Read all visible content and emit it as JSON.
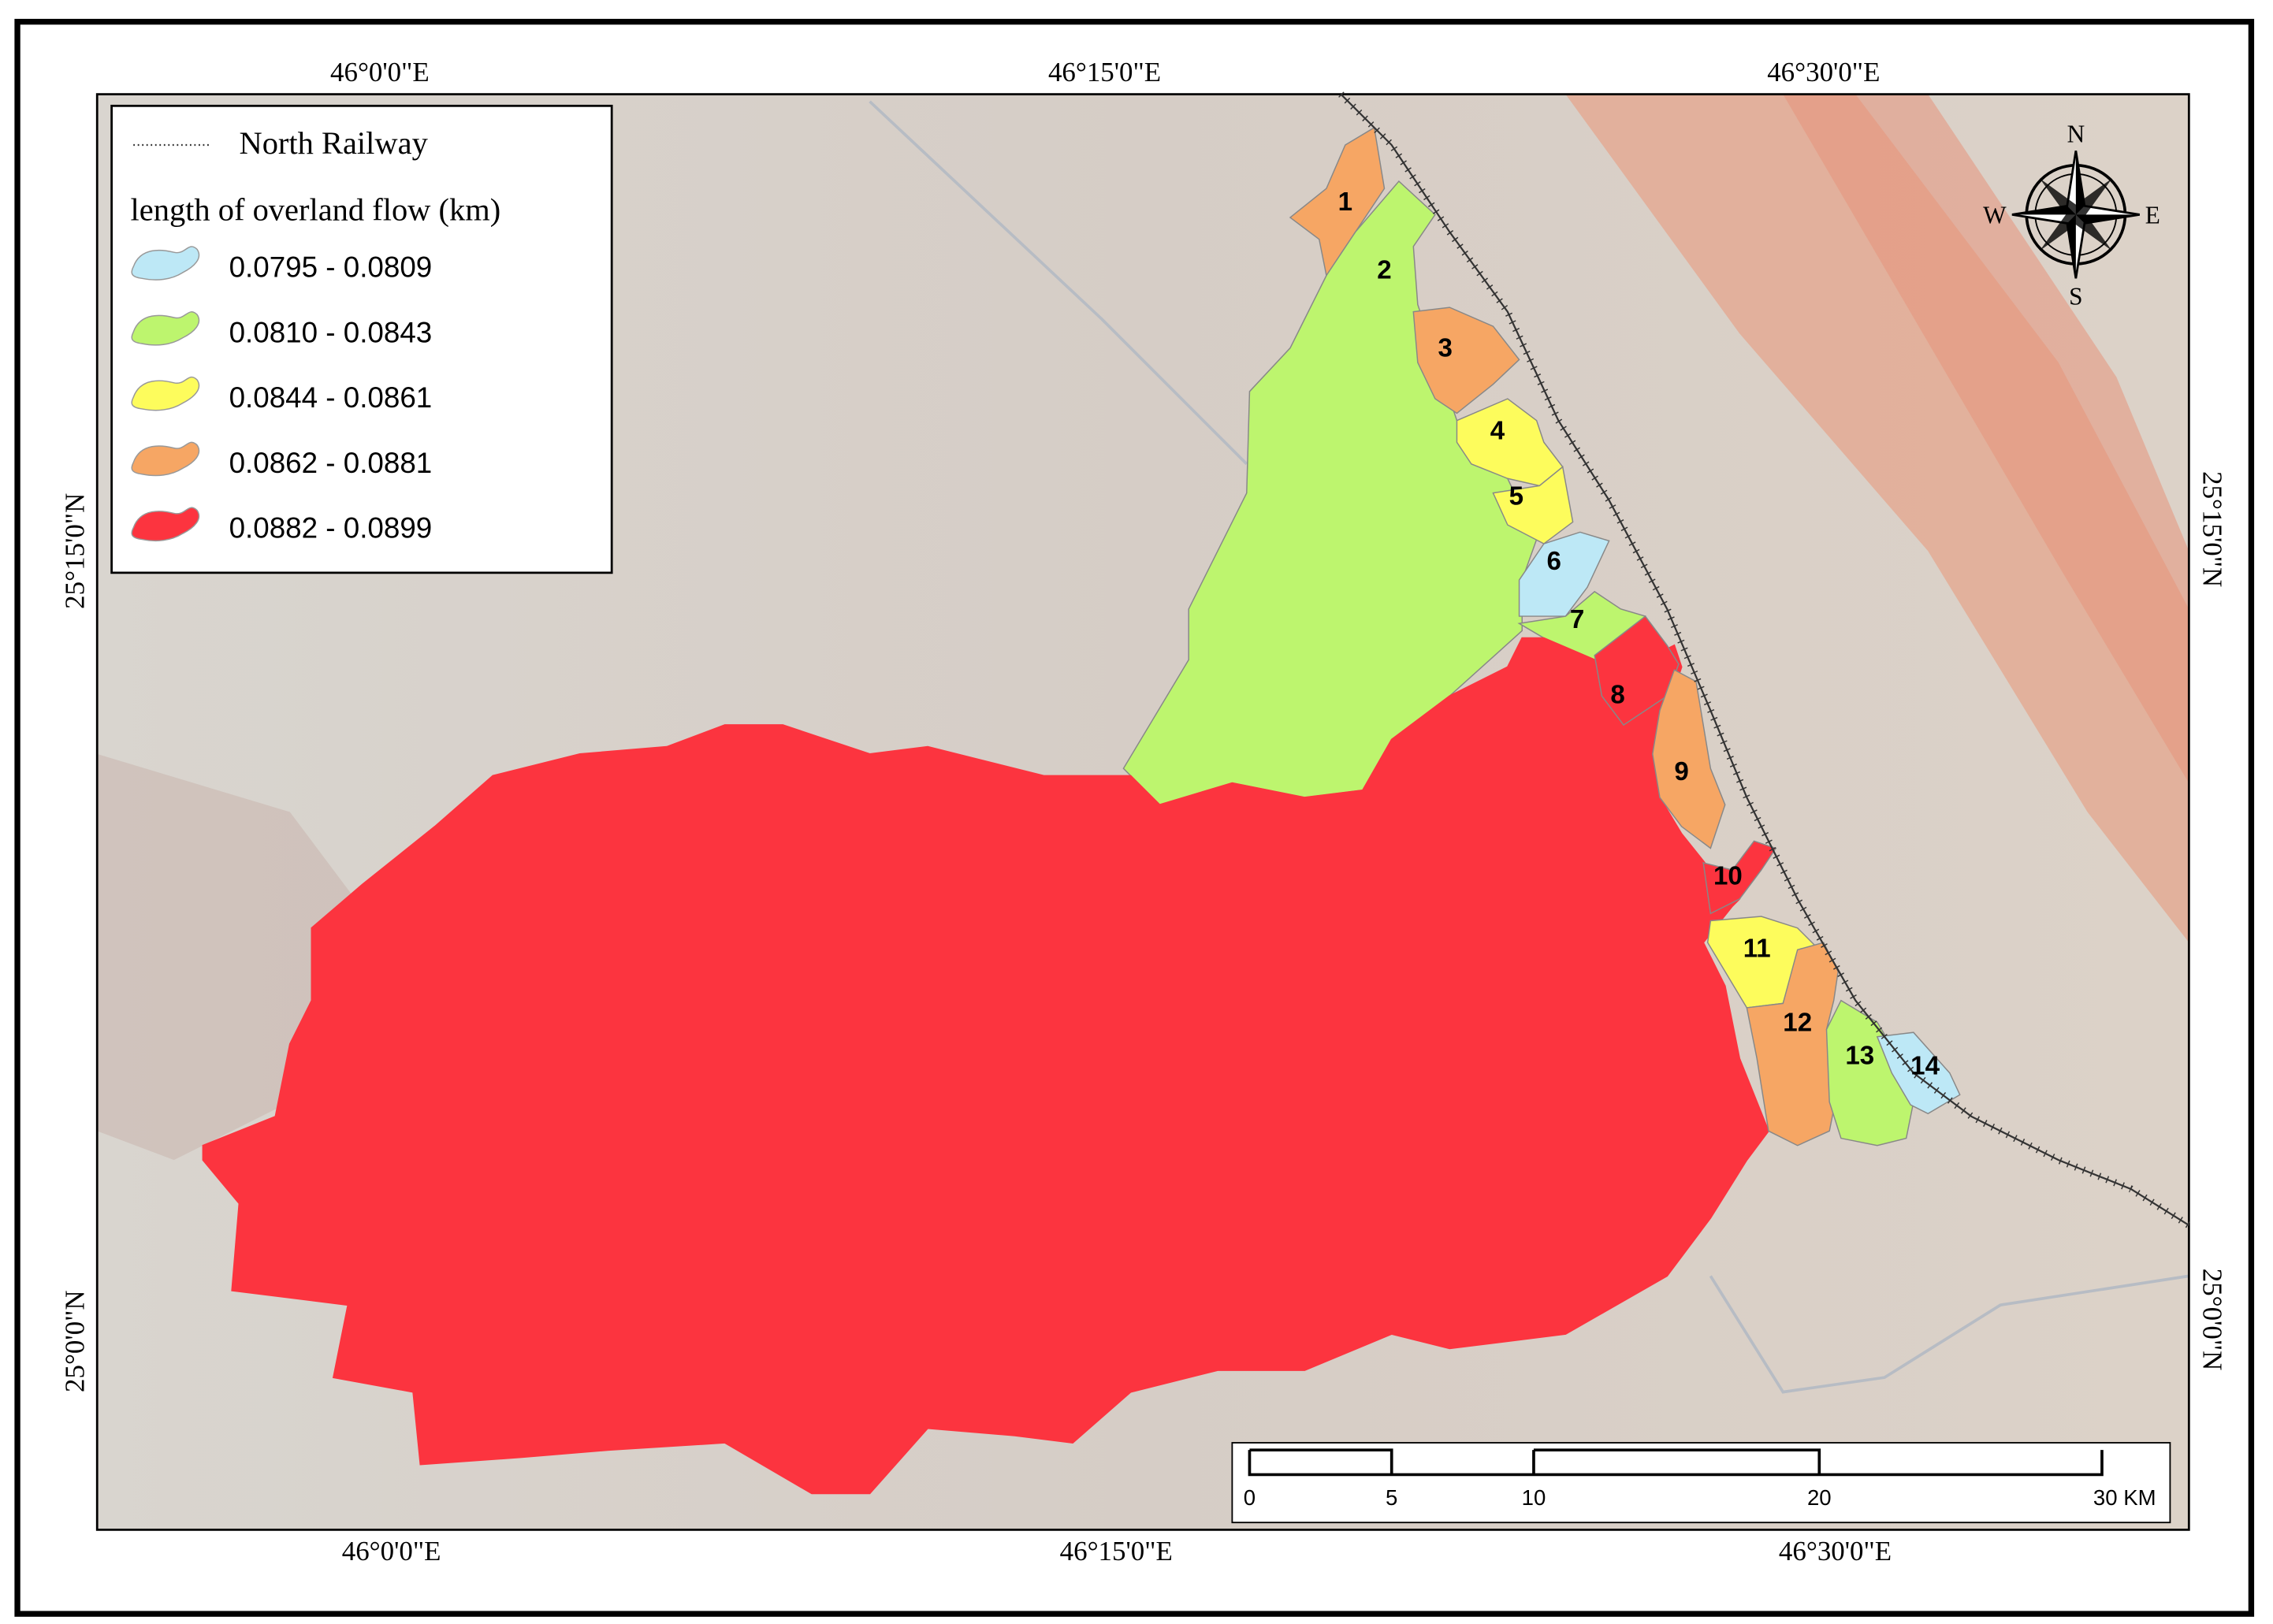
{
  "legend": {
    "railway": "North Railway",
    "title": "length of overland flow (km)",
    "classes": [
      {
        "label": "0.0795 - 0.0809",
        "color": "#bde8f6"
      },
      {
        "label": "0.0810 - 0.0843",
        "color": "#bdf56e"
      },
      {
        "label": "0.0844 - 0.0861",
        "color": "#fdfc5c"
      },
      {
        "label": "0.0862 - 0.0881",
        "color": "#f6a664"
      },
      {
        "label": "0.0882 - 0.0899",
        "color": "#fc343f"
      }
    ]
  },
  "basins": [
    {
      "label": "1",
      "color": "#f6a664"
    },
    {
      "label": "2",
      "color": "#bdf56e"
    },
    {
      "label": "3",
      "color": "#f6a664"
    },
    {
      "label": "4",
      "color": "#fdfc5c"
    },
    {
      "label": "5",
      "color": "#fdfc5c"
    },
    {
      "label": "6",
      "color": "#bde8f6"
    },
    {
      "label": "7",
      "color": "#bdf56e"
    },
    {
      "label": "8",
      "color": "#fc343f"
    },
    {
      "label": "9",
      "color": "#f6a664"
    },
    {
      "label": "10",
      "color": "#fc343f"
    },
    {
      "label": "11",
      "color": "#fdfc5c"
    },
    {
      "label": "12",
      "color": "#f6a664"
    },
    {
      "label": "13",
      "color": "#bdf56e"
    },
    {
      "label": "14",
      "color": "#bde8f6"
    }
  ],
  "graticule": {
    "top": [
      "46°0'0\"E",
      "46°15'0\"E",
      "46°30'0\"E"
    ],
    "bottom": [
      "46°0'0\"E",
      "46°15'0\"E",
      "46°30'0\"E"
    ],
    "left": [
      "25°15'0\"N",
      "25°0'0\"N"
    ],
    "right": [
      "25°15'0\"N",
      "25°0'0\"N"
    ]
  },
  "compass": {
    "north": "N",
    "south": "S",
    "east": "E",
    "west": "W"
  },
  "scale_bar": {
    "labels": [
      "0",
      "5",
      "10",
      "20",
      "30 KM"
    ]
  }
}
